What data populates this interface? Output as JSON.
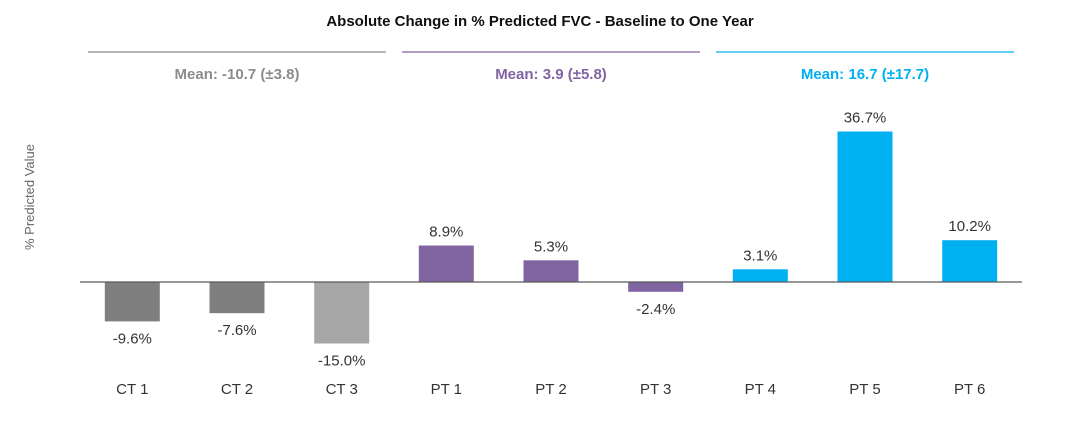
{
  "chart_data": {
    "type": "bar",
    "title": "Absolute Change in % Predicted FVC - Baseline to One Year",
    "ylabel": "% Predicted Value",
    "xlabel": "",
    "categories": [
      "CT 1",
      "CT 2",
      "CT 3",
      "PT 1",
      "PT 2",
      "PT 3",
      "PT 4",
      "PT 5",
      "PT 6"
    ],
    "values": [
      -9.6,
      -7.6,
      -15.0,
      8.9,
      5.3,
      -2.4,
      3.1,
      36.7,
      10.2
    ],
    "data_labels": [
      "-9.6%",
      "-7.6%",
      "-15.0%",
      "8.9%",
      "5.3%",
      "-2.4%",
      "3.1%",
      "36.7%",
      "10.2%"
    ],
    "bar_colors": [
      "#7f7f7f",
      "#7f7f7f",
      "#a6a6a6",
      "#8064a2",
      "#8064a2",
      "#8064a2",
      "#00b0f0",
      "#00b0f0",
      "#00b0f0"
    ],
    "ylim": [
      -22,
      40
    ],
    "grid": false,
    "groups": [
      {
        "label": "Mean: -10.7 (±3.8)",
        "color": "#8c8c8c",
        "from": 0,
        "to": 2
      },
      {
        "label": "Mean: 3.9 (±5.8)",
        "color": "#8064a2",
        "from": 3,
        "to": 5
      },
      {
        "label": "Mean: 16.7 (±17.7)",
        "color": "#00b0f0",
        "from": 6,
        "to": 8
      }
    ]
  }
}
